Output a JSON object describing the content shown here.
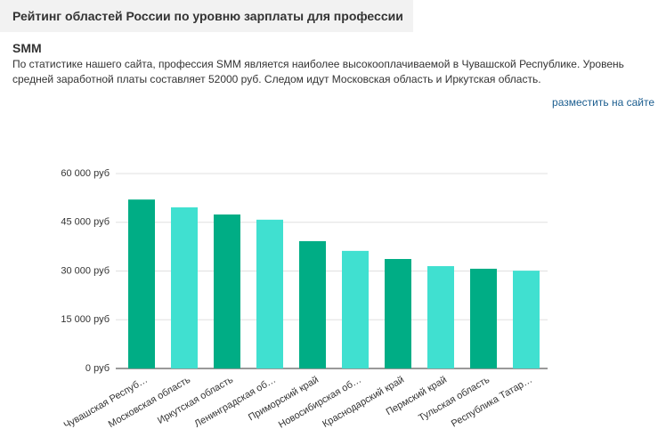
{
  "header": {
    "title": "Рейтинг областей России по уровню зарплаты для профессии SMM"
  },
  "description": "По статистике нашего сайта, профессия SMM является наиболее высокооплачиваемой в Чувашской Республике. Уровень средней заработной платы составляет 52000 руб. Следом идут Московская область и Иркутская область.",
  "embed_link": "разместить на сайте",
  "chart_data": {
    "type": "bar",
    "categories": [
      "Чувашская Респуб…",
      "Московская область",
      "Иркутская область",
      "Ленинградская об…",
      "Приморский край",
      "Новосибирская об…",
      "Краснодарский край",
      "Пермский край",
      "Тульская область",
      "Республика Татар…"
    ],
    "values": [
      52000,
      49600,
      47400,
      45800,
      39200,
      36200,
      33700,
      31500,
      30700,
      30100
    ],
    "colors": [
      "#00ad85",
      "#40e0d0",
      "#00ad85",
      "#40e0d0",
      "#00ad85",
      "#40e0d0",
      "#00ad85",
      "#40e0d0",
      "#00ad85",
      "#40e0d0"
    ],
    "ylim": [
      0,
      60000
    ],
    "yticks": [
      {
        "value": 0,
        "label": "0 руб"
      },
      {
        "value": 15000,
        "label": "15 000 руб"
      },
      {
        "value": 30000,
        "label": "30 000 руб"
      },
      {
        "value": 45000,
        "label": "45 000 руб"
      },
      {
        "value": 60000,
        "label": "60 000 руб"
      }
    ],
    "grid": true
  }
}
